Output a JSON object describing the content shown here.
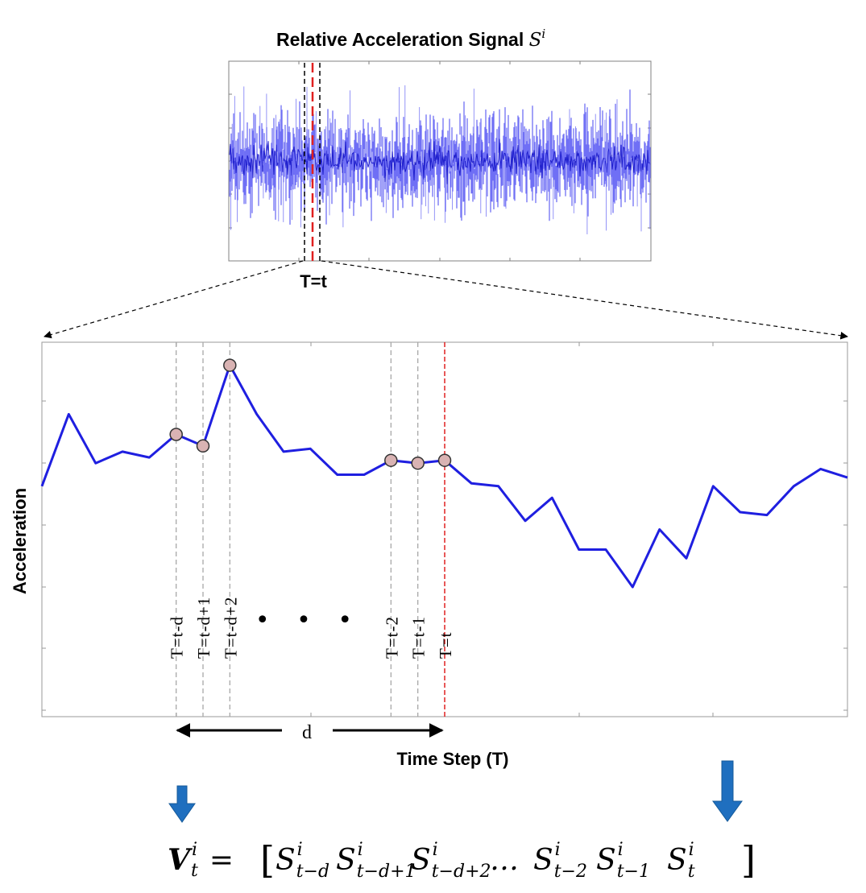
{
  "top_panel": {
    "title_text": "Relative Acceleration Signal ",
    "title_symbol": "S",
    "title_superscript": "i",
    "window_label": "T=t"
  },
  "zoom_panel": {
    "ylabel": "Acceleration",
    "xlabel": "Time Step (T)",
    "window_length_label": "d",
    "ellipsis": "• • •",
    "step_labels": [
      "T=t-d",
      "T=t-d+1",
      "T=t-d+2",
      "T=t-2",
      "T=t-1",
      "T=t"
    ]
  },
  "formula": {
    "lhs": "V",
    "lhs_sup": "i",
    "lhs_sub": "t",
    "equals": "=",
    "terms": [
      {
        "sym": "S",
        "sup": "i",
        "sub": "t−d"
      },
      {
        "sym": "S",
        "sup": "i",
        "sub": "t−d+1"
      },
      {
        "sym": "S",
        "sup": "i",
        "sub": "t−d+2"
      },
      {
        "sym": "…",
        "sup": "",
        "sub": ""
      },
      {
        "sym": "S",
        "sup": "i",
        "sub": "t−2"
      },
      {
        "sym": "S",
        "sup": "i",
        "sub": "t−1"
      },
      {
        "sym": "S",
        "sup": "i",
        "sub": "t"
      }
    ]
  },
  "colors": {
    "signal": "#1f1fe0",
    "window_marker": "#e02020",
    "sample_marker_fill": "#d9b3b3",
    "arrow": "#1f6fbf"
  },
  "chart_data": {
    "type": "line",
    "series": [
      {
        "values": [
          0.3,
          0.55,
          0.38,
          0.42,
          0.4,
          0.48,
          0.44,
          0.72,
          0.55,
          0.42,
          0.43,
          0.34,
          0.34,
          0.39,
          0.38,
          0.39,
          0.31,
          0.3,
          0.18,
          0.26,
          0.08,
          0.08,
          -0.05,
          0.15,
          0.05,
          0.3,
          0.21,
          0.2,
          0.3,
          0.36,
          0.33
        ]
      }
    ],
    "highlighted_steps": [
      5,
      6,
      7,
      13,
      14,
      15
    ],
    "current_step": 15,
    "xlabel": "Time Step (T)",
    "ylabel": "Acceleration"
  }
}
